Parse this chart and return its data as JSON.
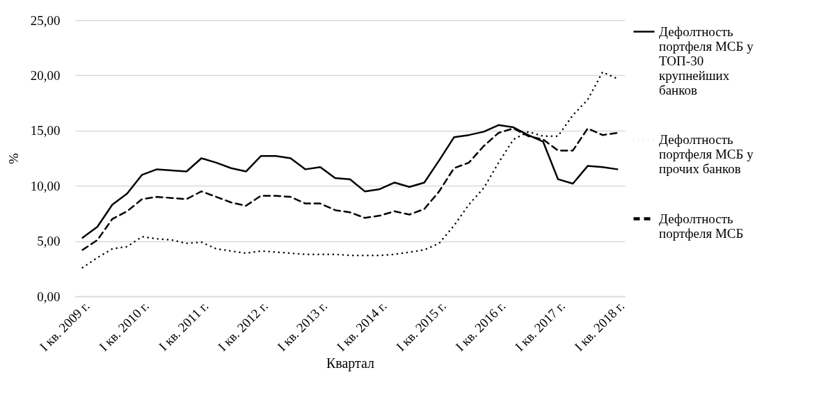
{
  "chart_data": {
    "type": "line",
    "xlabel": "Квартал",
    "ylabel": "%",
    "categories": [
      "I кв. 2009 г.",
      null,
      null,
      null,
      "I кв. 2010 г.",
      null,
      null,
      null,
      "I кв. 2011 г.",
      null,
      null,
      null,
      "I кв. 2012 г.",
      null,
      null,
      null,
      "I кв. 2013 г.",
      null,
      null,
      null,
      "I кв. 2014 г.",
      null,
      null,
      null,
      "I кв. 2015 г.",
      null,
      null,
      null,
      "I кв. 2016 г.",
      null,
      null,
      null,
      "I кв. 2017 г.",
      null,
      null,
      null,
      "I кв. 2018 г."
    ],
    "series": [
      {
        "name": "Дефолтность портфеля МСБ у ТОП-30 крупнейших банков",
        "color": "#000000",
        "line_style": "solid",
        "values": [
          5.3,
          6.3,
          8.3,
          9.3,
          11.0,
          11.5,
          11.4,
          11.3,
          12.5,
          12.1,
          11.6,
          11.3,
          12.7,
          12.7,
          12.5,
          11.5,
          11.7,
          10.7,
          10.6,
          9.5,
          9.7,
          10.3,
          9.9,
          10.3,
          12.3,
          14.4,
          14.6,
          14.9,
          15.5,
          15.3,
          14.6,
          14.0,
          10.6,
          10.2,
          11.8,
          11.7,
          11.5
        ]
      },
      {
        "name": "Дефолтность портфеля МСБ у прочих банков",
        "color": "#000000",
        "line_style": "dotted",
        "values": [
          2.6,
          3.5,
          4.3,
          4.5,
          5.4,
          5.2,
          5.1,
          4.8,
          4.9,
          4.3,
          4.1,
          3.9,
          4.1,
          4.0,
          3.9,
          3.8,
          3.8,
          3.8,
          3.7,
          3.7,
          3.7,
          3.8,
          4.0,
          4.2,
          4.8,
          6.4,
          8.3,
          9.8,
          12.1,
          14.2,
          14.9,
          14.5,
          14.5,
          16.4,
          17.8,
          20.3,
          19.7
        ]
      },
      {
        "name": "Дефолтность портфеля МСБ",
        "color": "#000000",
        "line_style": "dashed",
        "values": [
          4.2,
          5.1,
          7.0,
          7.7,
          8.8,
          9.0,
          8.9,
          8.8,
          9.5,
          9.0,
          8.5,
          8.2,
          9.1,
          9.1,
          9.0,
          8.4,
          8.4,
          7.8,
          7.6,
          7.1,
          7.3,
          7.7,
          7.4,
          7.9,
          9.5,
          11.6,
          12.1,
          13.6,
          14.8,
          15.2,
          14.5,
          14.2,
          13.2,
          13.2,
          15.2,
          14.6,
          14.8
        ]
      }
    ],
    "ylim": [
      0,
      25
    ],
    "yticks": [
      {
        "value": 0,
        "label": "0,00"
      },
      {
        "value": 5,
        "label": "5,00"
      },
      {
        "value": 10,
        "label": "10,00"
      },
      {
        "value": 15,
        "label": "15,00"
      },
      {
        "value": 20,
        "label": "20,00"
      },
      {
        "value": 25,
        "label": "25,00"
      }
    ],
    "grid": "y",
    "legend": "right"
  }
}
